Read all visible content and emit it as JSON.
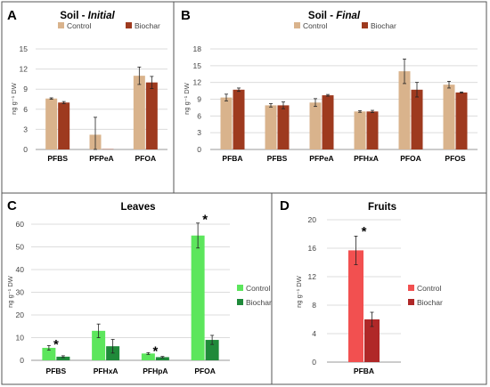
{
  "chart_data": [
    {
      "id": "A",
      "panel_letter": "A",
      "type": "bar",
      "title": "Soil - Initial",
      "title_plain": "Soil - ",
      "title_italic": "Initial",
      "ylabel": "ng g⁻¹ DW",
      "ylim": [
        0,
        15
      ],
      "yticks": [
        0,
        3,
        6,
        9,
        12,
        15
      ],
      "categories": [
        "PFBS",
        "PFPeA",
        "PFOA"
      ],
      "legend_position": "top-center",
      "series": [
        {
          "name": "Control",
          "color": "#d9b38c",
          "values": [
            7.6,
            2.2,
            11.0
          ],
          "errors": [
            0.1,
            2.6,
            1.3
          ]
        },
        {
          "name": "Biochar",
          "color": "#9e3a1f",
          "values": [
            7.0,
            0.05,
            10.0
          ],
          "errors": [
            0.15,
            0.0,
            0.9
          ]
        }
      ],
      "stars": []
    },
    {
      "id": "B",
      "panel_letter": "B",
      "type": "bar",
      "title": "Soil - Final",
      "title_plain": "Soil - ",
      "title_italic": "Final",
      "ylabel": "ng g⁻¹ DW",
      "ylim": [
        0,
        18
      ],
      "yticks": [
        0,
        3,
        6,
        9,
        12,
        15,
        18
      ],
      "categories": [
        "PFBA",
        "PFBS",
        "PFPeA",
        "PFHxA",
        "PFOA",
        "PFOS"
      ],
      "legend_position": "top-center",
      "series": [
        {
          "name": "Control",
          "color": "#d9b38c",
          "values": [
            9.3,
            7.9,
            8.4,
            6.8,
            14.0,
            11.6
          ],
          "errors": [
            0.6,
            0.3,
            0.7,
            0.15,
            2.2,
            0.6
          ]
        },
        {
          "name": "Biochar",
          "color": "#9e3a1f",
          "values": [
            10.7,
            7.9,
            9.7,
            6.8,
            10.7,
            10.2
          ],
          "errors": [
            0.3,
            0.6,
            0.15,
            0.2,
            1.3,
            0.1
          ]
        }
      ],
      "stars": []
    },
    {
      "id": "C",
      "panel_letter": "C",
      "type": "bar",
      "title": "Leaves",
      "title_plain": "Leaves",
      "title_italic": "",
      "ylabel": "ng g⁻¹ DW",
      "ylim": [
        0,
        60
      ],
      "yticks": [
        0,
        10,
        20,
        30,
        40,
        50,
        60
      ],
      "categories": [
        "PFBS",
        "PFHxA",
        "PFHpA",
        "PFOA"
      ],
      "legend_position": "right",
      "series": [
        {
          "name": "Control",
          "color": "#5ce65c",
          "values": [
            5.5,
            13.0,
            3.0,
            55.0
          ],
          "errors": [
            1.0,
            3.0,
            0.4,
            5.5
          ]
        },
        {
          "name": "Biochar",
          "color": "#1f8a3a",
          "values": [
            1.6,
            6.2,
            1.4,
            9.0
          ],
          "errors": [
            0.4,
            3.0,
            0.3,
            2.0
          ]
        }
      ],
      "stars": [
        {
          "category": 0,
          "y": 7.5,
          "symbol": "*"
        },
        {
          "category": 2,
          "y": 4.5,
          "symbol": "*"
        },
        {
          "category": 3,
          "y": 62.5,
          "symbol": "*"
        }
      ]
    },
    {
      "id": "D",
      "panel_letter": "D",
      "type": "bar",
      "title": "Fruits",
      "title_plain": "Fruits",
      "title_italic": "",
      "ylabel": "ng g⁻¹ DW",
      "ylim": [
        0,
        20
      ],
      "yticks": [
        0,
        4,
        8,
        12,
        16,
        20
      ],
      "categories": [
        "PFBA"
      ],
      "legend_position": "right",
      "series": [
        {
          "name": "Control",
          "color": "#f25050",
          "values": [
            15.7
          ],
          "errors": [
            2.0
          ]
        },
        {
          "name": "Biochar",
          "color": "#b02828",
          "values": [
            6.0
          ],
          "errors": [
            1.0
          ]
        }
      ],
      "stars": [
        {
          "category": 0,
          "y": 18.5,
          "symbol": "*"
        }
      ]
    }
  ]
}
